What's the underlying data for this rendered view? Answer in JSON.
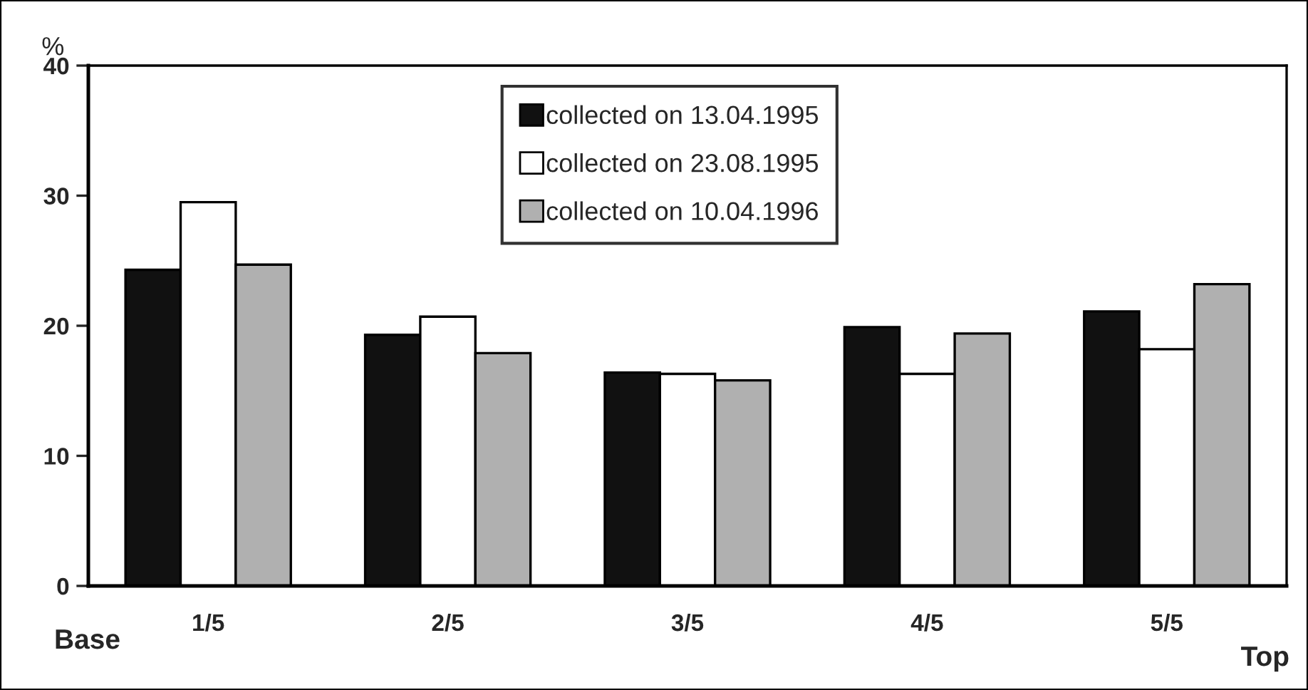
{
  "chart_data": {
    "type": "bar",
    "ylabel": "%",
    "categories": [
      "1/5",
      "2/5",
      "3/5",
      "4/5",
      "5/5"
    ],
    "series": [
      {
        "name": "collected on 13.04.1995",
        "color": "#111111",
        "values": [
          24.3,
          19.3,
          16.4,
          19.9,
          21.1
        ]
      },
      {
        "name": "collected on 23.08.1995",
        "color": "#ffffff",
        "values": [
          29.5,
          20.7,
          16.3,
          16.3,
          18.2
        ]
      },
      {
        "name": "collected on 10.04.1996",
        "color": "#b0b0b0",
        "values": [
          24.7,
          17.9,
          15.8,
          19.4,
          23.2
        ]
      }
    ],
    "ylim": [
      0,
      40
    ],
    "yticks": [
      0,
      10,
      20,
      30,
      40
    ],
    "grid": false,
    "legend": "top",
    "annotations": [
      "Base",
      "Top"
    ]
  }
}
